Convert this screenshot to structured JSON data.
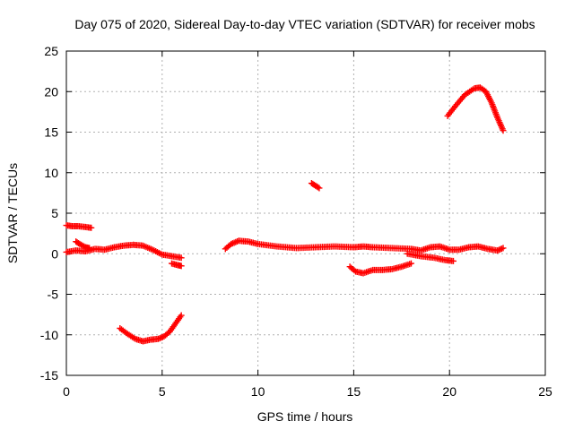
{
  "chart_data": {
    "type": "scatter",
    "title": "Day 075 of 2020, Sidereal Day-to-day VTEC variation (SDTVAR) for receiver mobs",
    "xlabel": "GPS time / hours",
    "ylabel": "SDTVAR / TECUs",
    "xlim": [
      0,
      25
    ],
    "ylim": [
      -15,
      25
    ],
    "xticks": [
      0,
      5,
      10,
      15,
      20,
      25
    ],
    "yticks": [
      -15,
      -10,
      -5,
      0,
      5,
      10,
      15,
      20,
      25
    ],
    "grid": true,
    "marker": "+",
    "color": "#ff0000",
    "series": [
      {
        "name": "seg1",
        "points": [
          [
            0.0,
            0.2
          ],
          [
            0.5,
            0.4
          ],
          [
            1.0,
            0.3
          ],
          [
            1.5,
            0.6
          ],
          [
            2.0,
            0.5
          ],
          [
            2.5,
            0.8
          ],
          [
            3.0,
            1.0
          ],
          [
            3.5,
            1.1
          ],
          [
            4.0,
            1.0
          ],
          [
            4.5,
            0.5
          ],
          [
            5.0,
            -0.1
          ],
          [
            5.5,
            -0.3
          ],
          [
            6.0,
            -0.5
          ]
        ]
      },
      {
        "name": "seg2",
        "points": [
          [
            0.0,
            3.5
          ],
          [
            0.3,
            3.4
          ],
          [
            0.6,
            3.4
          ],
          [
            1.0,
            3.3
          ],
          [
            1.3,
            3.2
          ]
        ]
      },
      {
        "name": "seg3",
        "points": [
          [
            0.5,
            1.5
          ],
          [
            0.7,
            1.2
          ],
          [
            1.0,
            0.8
          ],
          [
            1.2,
            0.7
          ]
        ]
      },
      {
        "name": "seg4",
        "points": [
          [
            5.5,
            -1.2
          ],
          [
            5.8,
            -1.4
          ],
          [
            6.0,
            -1.5
          ]
        ]
      },
      {
        "name": "seg5",
        "points": [
          [
            2.8,
            -9.2
          ],
          [
            3.2,
            -9.9
          ],
          [
            3.6,
            -10.5
          ],
          [
            4.0,
            -10.8
          ],
          [
            4.4,
            -10.6
          ],
          [
            4.8,
            -10.5
          ],
          [
            5.1,
            -10.2
          ],
          [
            5.4,
            -9.6
          ],
          [
            5.7,
            -8.6
          ],
          [
            6.0,
            -7.6
          ]
        ]
      },
      {
        "name": "seg6",
        "points": [
          [
            8.3,
            0.6
          ],
          [
            8.6,
            1.2
          ],
          [
            9.0,
            1.6
          ],
          [
            9.5,
            1.5
          ],
          [
            10.0,
            1.2
          ],
          [
            11.0,
            0.9
          ],
          [
            12.0,
            0.7
          ],
          [
            13.0,
            0.8
          ],
          [
            14.0,
            0.9
          ],
          [
            15.0,
            0.8
          ],
          [
            15.5,
            0.9
          ],
          [
            16.0,
            0.8
          ],
          [
            17.0,
            0.7
          ],
          [
            18.0,
            0.6
          ],
          [
            18.5,
            0.4
          ],
          [
            19.0,
            0.8
          ],
          [
            19.5,
            0.9
          ],
          [
            20.0,
            0.5
          ],
          [
            20.5,
            0.5
          ],
          [
            21.0,
            0.8
          ],
          [
            21.5,
            0.9
          ],
          [
            22.0,
            0.6
          ],
          [
            22.5,
            0.4
          ],
          [
            22.8,
            0.7
          ]
        ]
      },
      {
        "name": "seg7",
        "points": [
          [
            17.8,
            0.0
          ],
          [
            18.5,
            -0.3
          ],
          [
            19.2,
            -0.5
          ],
          [
            19.8,
            -0.8
          ],
          [
            20.2,
            -0.9
          ]
        ]
      },
      {
        "name": "seg8",
        "points": [
          [
            14.8,
            -1.6
          ],
          [
            15.1,
            -2.2
          ],
          [
            15.5,
            -2.4
          ],
          [
            16.0,
            -2.0
          ],
          [
            16.5,
            -2.0
          ],
          [
            17.0,
            -1.9
          ],
          [
            17.5,
            -1.6
          ],
          [
            18.0,
            -1.2
          ]
        ]
      },
      {
        "name": "seg9",
        "points": [
          [
            12.8,
            8.7
          ],
          [
            13.0,
            8.4
          ],
          [
            13.2,
            8.1
          ]
        ]
      },
      {
        "name": "seg10",
        "points": [
          [
            19.9,
            17.0
          ],
          [
            20.3,
            18.2
          ],
          [
            20.8,
            19.6
          ],
          [
            21.3,
            20.4
          ],
          [
            21.6,
            20.5
          ],
          [
            21.9,
            20.0
          ],
          [
            22.2,
            18.6
          ],
          [
            22.5,
            16.8
          ],
          [
            22.8,
            15.2
          ]
        ]
      }
    ]
  }
}
